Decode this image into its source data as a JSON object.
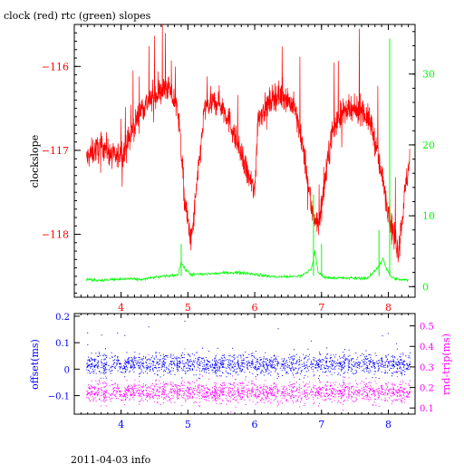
{
  "title": "clock (red) rtc (green) slopes",
  "footer": "2011-04-03 info",
  "colors": {
    "clock": "#ff0000",
    "rtc": "#00ff00",
    "offset": "#0000ff",
    "rndtrip": "#ff00ff",
    "axis": "#000000"
  },
  "chart_data": [
    {
      "type": "line",
      "title": "clock (red) rtc (green) slopes",
      "ylabel": "clockslope",
      "y2label": "",
      "xlim": [
        3.3,
        8.4
      ],
      "ylim": [
        -118.75,
        -115.5
      ],
      "y2lim": [
        -1.5,
        37
      ],
      "x_ticks": [
        4,
        5,
        6,
        7,
        8
      ],
      "y_ticks": [
        -116,
        -117,
        -118
      ],
      "y2_ticks": [
        0,
        10,
        20,
        30
      ],
      "grid": false,
      "series": [
        {
          "name": "clock",
          "axis": "left",
          "color": "#ff0000",
          "x": [
            3.48,
            3.6,
            3.75,
            3.9,
            4.05,
            4.15,
            4.3,
            4.5,
            4.7,
            4.85,
            4.9,
            4.95,
            5.05,
            5.15,
            5.25,
            5.45,
            5.6,
            5.75,
            5.9,
            6.0,
            6.05,
            6.15,
            6.3,
            6.45,
            6.6,
            6.75,
            6.85,
            6.95,
            7.05,
            7.15,
            7.3,
            7.45,
            7.6,
            7.75,
            7.85,
            7.95,
            8.05,
            8.15,
            8.25,
            8.32
          ],
          "y": [
            -117.1,
            -117.0,
            -116.95,
            -117.1,
            -117.0,
            -116.8,
            -116.5,
            -116.35,
            -116.25,
            -116.5,
            -117.0,
            -117.6,
            -118.1,
            -117.3,
            -116.5,
            -116.4,
            -116.6,
            -116.95,
            -117.3,
            -117.5,
            -116.6,
            -116.5,
            -116.35,
            -116.35,
            -116.5,
            -117.1,
            -117.7,
            -117.9,
            -117.4,
            -116.8,
            -116.55,
            -116.55,
            -116.5,
            -116.7,
            -117.1,
            -117.5,
            -117.9,
            -118.2,
            -117.5,
            -117.1
          ]
        },
        {
          "name": "rtc",
          "axis": "right",
          "color": "#00ff00",
          "x": [
            3.48,
            3.7,
            3.9,
            4.1,
            4.3,
            4.5,
            4.7,
            4.85,
            4.9,
            4.95,
            5.05,
            5.3,
            5.5,
            5.7,
            5.9,
            6.1,
            6.3,
            6.5,
            6.7,
            6.85,
            6.9,
            6.95,
            7.05,
            7.3,
            7.5,
            7.7,
            7.85,
            7.92,
            7.97,
            8.05,
            8.15,
            8.3
          ],
          "y": [
            1.0,
            0.9,
            1.0,
            1.1,
            1.0,
            1.3,
            1.5,
            1.7,
            3.5,
            2.5,
            1.7,
            1.8,
            1.9,
            2.0,
            1.9,
            1.6,
            1.4,
            1.4,
            1.5,
            2.5,
            5.0,
            2.0,
            1.3,
            1.2,
            1.2,
            1.2,
            2.8,
            4.0,
            2.5,
            1.3,
            1.0,
            0.9
          ]
        }
      ]
    },
    {
      "type": "scatter",
      "xlabel": "",
      "ylabel": "offset(ms)",
      "y2label": "rnd-trip(ms)",
      "xlim": [
        3.3,
        8.4
      ],
      "ylim": [
        -0.17,
        0.21
      ],
      "y2lim": [
        0.07,
        0.56
      ],
      "x_ticks": [
        4,
        5,
        6,
        7,
        8
      ],
      "y_ticks": [
        0.2,
        0.1,
        0,
        -0.1
      ],
      "y2_ticks": [
        0.5,
        0.4,
        0.3,
        0.2,
        0.1
      ],
      "grid": false,
      "series": [
        {
          "name": "offset",
          "axis": "left",
          "color": "#0000ff",
          "x_range": [
            3.48,
            8.32
          ],
          "center": 0.02,
          "spread": 0.07
        },
        {
          "name": "rnd-trip",
          "axis": "right",
          "color": "#ff00ff",
          "x_range": [
            3.48,
            8.32
          ],
          "center": 0.18,
          "spread": 0.09
        }
      ]
    }
  ]
}
